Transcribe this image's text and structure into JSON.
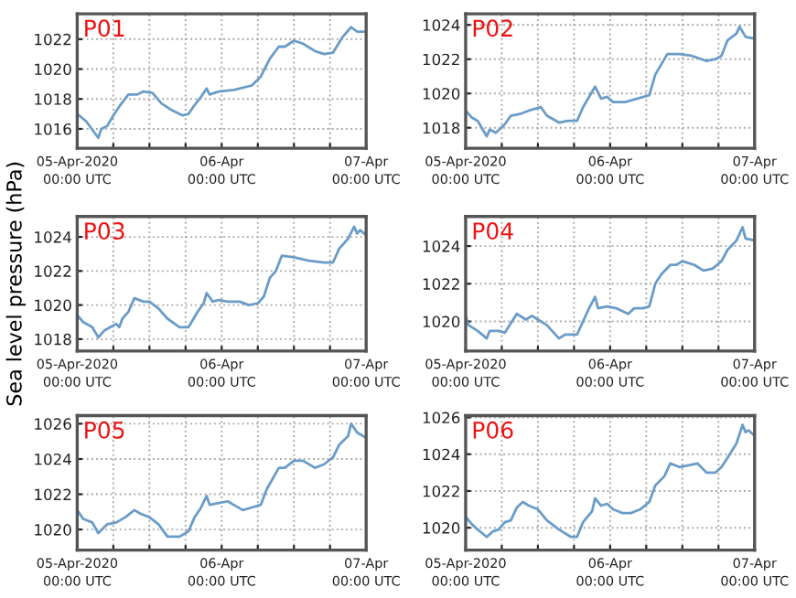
{
  "chart_data": [
    {
      "type": "line",
      "title": "P01",
      "xlim": [
        "2020-04-05T00:00",
        "2020-04-07T00:00"
      ],
      "ylim": [
        1014.7,
        1023.7
      ],
      "yticks": [
        1016,
        1018,
        1020,
        1022
      ],
      "xticks": [
        {
          "value": "2020-04-05T00:00",
          "label": "05-Apr-2020\n00:00 UTC"
        },
        {
          "value": "2020-04-05T06:00",
          "label": null
        },
        {
          "value": "2020-04-05T12:00",
          "label": null
        },
        {
          "value": "2020-04-05T18:00",
          "label": null
        },
        {
          "value": "2020-04-06T00:00",
          "label": "06-Apr\n00:00 UTC"
        },
        {
          "value": "2020-04-06T06:00",
          "label": null
        },
        {
          "value": "2020-04-06T12:00",
          "label": null
        },
        {
          "value": "2020-04-06T18:00",
          "label": null
        },
        {
          "value": "2020-04-07T00:00",
          "label": "07-Apr\n00:00 UTC"
        }
      ],
      "grid": true,
      "series": [
        {
          "color": "#6a9cc8",
          "x": [
            "2020-04-05T00:00",
            "2020-04-05T01:30",
            "2020-04-05T03:30",
            "2020-04-05T04:00",
            "2020-04-05T05:00",
            "2020-04-05T06:00",
            "2020-04-05T07:00",
            "2020-04-05T08:30",
            "2020-04-05T10:00",
            "2020-04-05T11:00",
            "2020-04-05T12:30",
            "2020-04-05T14:00",
            "2020-04-05T15:30",
            "2020-04-05T17:30",
            "2020-04-05T18:30",
            "2020-04-05T19:30",
            "2020-04-05T20:30",
            "2020-04-05T21:30",
            "2020-04-05T22:00",
            "2020-04-05T23:30",
            "2020-04-06T02:00",
            "2020-04-06T05:00",
            "2020-04-06T06:30",
            "2020-04-06T08:00",
            "2020-04-06T09:30",
            "2020-04-06T10:30",
            "2020-04-06T12:00",
            "2020-04-06T13:30",
            "2020-04-06T15:30",
            "2020-04-06T17:00",
            "2020-04-06T18:30",
            "2020-04-06T20:00",
            "2020-04-06T21:30",
            "2020-04-06T22:30",
            "2020-04-07T00:00"
          ],
          "values": [
            1017.0,
            1016.5,
            1015.4,
            1016.0,
            1016.2,
            1016.9,
            1017.5,
            1018.3,
            1018.3,
            1018.5,
            1018.4,
            1017.7,
            1017.3,
            1016.9,
            1017.0,
            1017.6,
            1018.1,
            1018.7,
            1018.3,
            1018.5,
            1018.6,
            1018.9,
            1019.5,
            1020.7,
            1021.5,
            1021.5,
            1021.9,
            1021.7,
            1021.2,
            1021.0,
            1021.1,
            1022.1,
            1022.8,
            1022.5,
            1022.5
          ]
        }
      ]
    },
    {
      "type": "line",
      "title": "P02",
      "xlim": [
        "2020-04-05T00:00",
        "2020-04-07T00:00"
      ],
      "ylim": [
        1016.8,
        1024.65
      ],
      "yticks": [
        1018,
        1020,
        1022,
        1024
      ],
      "xticks": [
        {
          "value": "2020-04-05T00:00",
          "label": "05-Apr-2020\n00:00 UTC"
        },
        {
          "value": "2020-04-05T06:00",
          "label": null
        },
        {
          "value": "2020-04-05T12:00",
          "label": null
        },
        {
          "value": "2020-04-05T18:00",
          "label": null
        },
        {
          "value": "2020-04-06T00:00",
          "label": "06-Apr\n00:00 UTC"
        },
        {
          "value": "2020-04-06T06:00",
          "label": null
        },
        {
          "value": "2020-04-06T12:00",
          "label": null
        },
        {
          "value": "2020-04-06T18:00",
          "label": null
        },
        {
          "value": "2020-04-07T00:00",
          "label": "07-Apr\n00:00 UTC"
        }
      ],
      "grid": true,
      "series": [
        {
          "color": "#6a9cc8",
          "x": [
            "2020-04-05T00:00",
            "2020-04-05T01:00",
            "2020-04-05T02:00",
            "2020-04-05T03:30",
            "2020-04-05T04:00",
            "2020-04-05T05:00",
            "2020-04-05T06:30",
            "2020-04-05T07:30",
            "2020-04-05T09:00",
            "2020-04-05T10:30",
            "2020-04-05T12:30",
            "2020-04-05T13:30",
            "2020-04-05T15:30",
            "2020-04-05T17:00",
            "2020-04-05T18:30",
            "2020-04-05T19:30",
            "2020-04-05T20:30",
            "2020-04-05T21:30",
            "2020-04-05T22:30",
            "2020-04-05T23:30",
            "2020-04-06T00:30",
            "2020-04-06T02:30",
            "2020-04-06T04:30",
            "2020-04-06T06:30",
            "2020-04-06T07:30",
            "2020-04-06T09:30",
            "2020-04-06T11:30",
            "2020-04-06T13:30",
            "2020-04-06T16:00",
            "2020-04-06T17:30",
            "2020-04-06T18:30",
            "2020-04-06T19:30",
            "2020-04-06T21:00",
            "2020-04-06T21:30",
            "2020-04-06T22:30",
            "2020-04-07T00:00"
          ],
          "values": [
            1019.0,
            1018.6,
            1018.4,
            1017.5,
            1017.9,
            1017.7,
            1018.2,
            1018.7,
            1018.8,
            1019.0,
            1019.2,
            1018.7,
            1018.3,
            1018.4,
            1018.4,
            1019.2,
            1019.8,
            1020.4,
            1019.7,
            1019.8,
            1019.5,
            1019.5,
            1019.7,
            1019.9,
            1021.1,
            1022.3,
            1022.3,
            1022.2,
            1021.9,
            1022.0,
            1022.2,
            1023.1,
            1023.5,
            1023.9,
            1023.3,
            1023.2
          ]
        }
      ]
    },
    {
      "type": "line",
      "title": "P03",
      "ylabel": "Sea level pressure (hPa)",
      "xlim": [
        "2020-04-05T00:00",
        "2020-04-07T00:00"
      ],
      "ylim": [
        1017.3,
        1025.2
      ],
      "yticks": [
        1018,
        1020,
        1022,
        1024
      ],
      "xticks": [
        {
          "value": "2020-04-05T00:00",
          "label": "05-Apr-2020\n00:00 UTC"
        },
        {
          "value": "2020-04-05T06:00",
          "label": null
        },
        {
          "value": "2020-04-05T12:00",
          "label": null
        },
        {
          "value": "2020-04-05T18:00",
          "label": null
        },
        {
          "value": "2020-04-06T00:00",
          "label": "06-Apr\n00:00 UTC"
        },
        {
          "value": "2020-04-06T06:00",
          "label": null
        },
        {
          "value": "2020-04-06T12:00",
          "label": null
        },
        {
          "value": "2020-04-06T18:00",
          "label": null
        },
        {
          "value": "2020-04-07T00:00",
          "label": "07-Apr\n00:00 UTC"
        }
      ],
      "grid": true,
      "series": [
        {
          "color": "#6a9cc8",
          "x": [
            "2020-04-05T00:00",
            "2020-04-05T01:00",
            "2020-04-05T02:30",
            "2020-04-05T03:30",
            "2020-04-05T04:30",
            "2020-04-05T05:30",
            "2020-04-05T06:30",
            "2020-04-05T07:00",
            "2020-04-05T07:30",
            "2020-04-05T08:30",
            "2020-04-05T09:30",
            "2020-04-05T11:00",
            "2020-04-05T12:00",
            "2020-04-05T13:30",
            "2020-04-05T15:00",
            "2020-04-05T17:00",
            "2020-04-05T18:30",
            "2020-04-05T20:00",
            "2020-04-05T21:00",
            "2020-04-05T21:30",
            "2020-04-05T22:30",
            "2020-04-05T23:30",
            "2020-04-06T01:00",
            "2020-04-06T03:00",
            "2020-04-06T04:30",
            "2020-04-06T06:00",
            "2020-04-06T07:00",
            "2020-04-06T08:00",
            "2020-04-06T09:00",
            "2020-04-06T10:00",
            "2020-04-06T12:00",
            "2020-04-06T14:30",
            "2020-04-06T17:00",
            "2020-04-06T18:30",
            "2020-04-06T19:30",
            "2020-04-06T21:00",
            "2020-04-06T22:00",
            "2020-04-06T22:30",
            "2020-04-06T23:00",
            "2020-04-07T00:00"
          ],
          "values": [
            1019.4,
            1019.0,
            1018.7,
            1018.1,
            1018.5,
            1018.7,
            1018.9,
            1018.7,
            1019.2,
            1019.6,
            1020.4,
            1020.2,
            1020.2,
            1019.8,
            1019.2,
            1018.7,
            1018.7,
            1019.6,
            1020.1,
            1020.7,
            1020.2,
            1020.3,
            1020.2,
            1020.2,
            1020.0,
            1020.1,
            1020.5,
            1021.6,
            1022.0,
            1022.9,
            1022.8,
            1022.6,
            1022.5,
            1022.5,
            1023.3,
            1023.9,
            1024.6,
            1024.2,
            1024.4,
            1024.1
          ]
        }
      ]
    },
    {
      "type": "line",
      "title": "P04",
      "xlim": [
        "2020-04-05T00:00",
        "2020-04-07T00:00"
      ],
      "ylim": [
        1018.43,
        1025.57
      ],
      "yticks": [
        1020,
        1022,
        1024
      ],
      "xticks": [
        {
          "value": "2020-04-05T00:00",
          "label": "05-Apr-2020\n00:00 UTC"
        },
        {
          "value": "2020-04-05T06:00",
          "label": null
        },
        {
          "value": "2020-04-05T12:00",
          "label": null
        },
        {
          "value": "2020-04-05T18:00",
          "label": null
        },
        {
          "value": "2020-04-06T00:00",
          "label": "06-Apr\n00:00 UTC"
        },
        {
          "value": "2020-04-06T06:00",
          "label": null
        },
        {
          "value": "2020-04-06T12:00",
          "label": null
        },
        {
          "value": "2020-04-06T18:00",
          "label": null
        },
        {
          "value": "2020-04-07T00:00",
          "label": "07-Apr\n00:00 UTC"
        }
      ],
      "grid": true,
      "series": [
        {
          "color": "#6a9cc8",
          "x": [
            "2020-04-05T00:00",
            "2020-04-05T00:30",
            "2020-04-05T02:00",
            "2020-04-05T03:30",
            "2020-04-05T04:00",
            "2020-04-05T05:30",
            "2020-04-05T06:30",
            "2020-04-05T07:30",
            "2020-04-05T08:30",
            "2020-04-05T10:00",
            "2020-04-05T11:00",
            "2020-04-05T12:00",
            "2020-04-05T13:30",
            "2020-04-05T15:30",
            "2020-04-05T16:30",
            "2020-04-05T18:30",
            "2020-04-05T19:30",
            "2020-04-05T20:30",
            "2020-04-05T21:30",
            "2020-04-05T22:00",
            "2020-04-05T23:30",
            "2020-04-06T01:00",
            "2020-04-06T03:00",
            "2020-04-06T04:00",
            "2020-04-06T05:30",
            "2020-04-06T06:30",
            "2020-04-06T07:30",
            "2020-04-06T08:30",
            "2020-04-06T10:00",
            "2020-04-06T11:00",
            "2020-04-06T12:00",
            "2020-04-06T14:00",
            "2020-04-06T15:30",
            "2020-04-06T17:00",
            "2020-04-06T18:30",
            "2020-04-06T19:30",
            "2020-04-06T21:00",
            "2020-04-06T22:00",
            "2020-04-06T22:30",
            "2020-04-07T00:00"
          ],
          "values": [
            1020.3,
            1019.8,
            1019.5,
            1019.1,
            1019.5,
            1019.5,
            1019.4,
            1019.9,
            1020.4,
            1020.1,
            1020.3,
            1020.1,
            1019.8,
            1019.1,
            1019.3,
            1019.3,
            1020.0,
            1020.7,
            1021.3,
            1020.7,
            1020.8,
            1020.7,
            1020.4,
            1020.7,
            1020.7,
            1020.8,
            1022.0,
            1022.5,
            1023.0,
            1023.0,
            1023.2,
            1023.0,
            1022.7,
            1022.8,
            1023.2,
            1023.8,
            1024.3,
            1025.0,
            1024.4,
            1024.3
          ]
        }
      ]
    },
    {
      "type": "line",
      "title": "P05",
      "xlim": [
        "2020-04-05T00:00",
        "2020-04-07T00:00"
      ],
      "ylim": [
        1018.83,
        1026.46
      ],
      "yticks": [
        1020,
        1022,
        1024,
        1026
      ],
      "xticks": [
        {
          "value": "2020-04-05T00:00",
          "label": "05-Apr-2020\n00:00 UTC"
        },
        {
          "value": "2020-04-05T06:00",
          "label": null
        },
        {
          "value": "2020-04-05T12:00",
          "label": null
        },
        {
          "value": "2020-04-05T18:00",
          "label": null
        },
        {
          "value": "2020-04-06T00:00",
          "label": "06-Apr\n00:00 UTC"
        },
        {
          "value": "2020-04-06T06:00",
          "label": null
        },
        {
          "value": "2020-04-06T12:00",
          "label": null
        },
        {
          "value": "2020-04-06T18:00",
          "label": null
        },
        {
          "value": "2020-04-07T00:00",
          "label": "07-Apr\n00:00 UTC"
        }
      ],
      "grid": true,
      "series": [
        {
          "color": "#6a9cc8",
          "x": [
            "2020-04-05T00:00",
            "2020-04-05T01:00",
            "2020-04-05T02:30",
            "2020-04-05T03:30",
            "2020-04-05T05:00",
            "2020-04-05T06:30",
            "2020-04-05T08:00",
            "2020-04-05T09:30",
            "2020-04-05T10:30",
            "2020-04-05T12:00",
            "2020-04-05T13:30",
            "2020-04-05T15:00",
            "2020-04-05T17:00",
            "2020-04-05T18:30",
            "2020-04-05T19:30",
            "2020-04-05T20:30",
            "2020-04-05T21:30",
            "2020-04-05T22:00",
            "2020-04-05T23:30",
            "2020-04-06T01:00",
            "2020-04-06T03:30",
            "2020-04-06T04:30",
            "2020-04-06T06:30",
            "2020-04-06T07:30",
            "2020-04-06T09:30",
            "2020-04-06T10:30",
            "2020-04-06T12:00",
            "2020-04-06T13:30",
            "2020-04-06T15:30",
            "2020-04-06T17:00",
            "2020-04-06T18:30",
            "2020-04-06T19:30",
            "2020-04-06T21:00",
            "2020-04-06T21:30",
            "2020-04-06T22:30",
            "2020-04-07T00:00"
          ],
          "values": [
            1021.1,
            1020.6,
            1020.4,
            1019.8,
            1020.3,
            1020.4,
            1020.7,
            1021.1,
            1020.9,
            1020.7,
            1020.3,
            1019.6,
            1019.6,
            1019.9,
            1020.7,
            1021.2,
            1021.9,
            1021.4,
            1021.5,
            1021.6,
            1021.1,
            1021.2,
            1021.4,
            1022.3,
            1023.5,
            1023.5,
            1023.9,
            1023.9,
            1023.5,
            1023.7,
            1024.1,
            1024.8,
            1025.3,
            1026.0,
            1025.5,
            1025.2
          ]
        }
      ]
    },
    {
      "type": "line",
      "title": "P06",
      "xlim": [
        "2020-04-05T00:00",
        "2020-04-07T00:00"
      ],
      "ylim": [
        1018.78,
        1026.1
      ],
      "yticks": [
        1020,
        1022,
        1024,
        1026
      ],
      "xticks": [
        {
          "value": "2020-04-05T00:00",
          "label": "05-Apr-2020\n00:00 UTC"
        },
        {
          "value": "2020-04-05T06:00",
          "label": null
        },
        {
          "value": "2020-04-05T12:00",
          "label": null
        },
        {
          "value": "2020-04-05T18:00",
          "label": null
        },
        {
          "value": "2020-04-06T00:00",
          "label": "06-Apr\n00:00 UTC"
        },
        {
          "value": "2020-04-06T06:00",
          "label": null
        },
        {
          "value": "2020-04-06T12:00",
          "label": null
        },
        {
          "value": "2020-04-06T18:00",
          "label": null
        },
        {
          "value": "2020-04-07T00:00",
          "label": "07-Apr\n00:00 UTC"
        }
      ],
      "grid": true,
      "series": [
        {
          "color": "#6a9cc8",
          "x": [
            "2020-04-05T00:00",
            "2020-04-05T01:00",
            "2020-04-05T02:00",
            "2020-04-05T03:30",
            "2020-04-05T04:30",
            "2020-04-05T05:30",
            "2020-04-05T06:30",
            "2020-04-05T07:30",
            "2020-04-05T08:30",
            "2020-04-05T09:30",
            "2020-04-05T10:30",
            "2020-04-05T12:00",
            "2020-04-05T13:30",
            "2020-04-05T15:30",
            "2020-04-05T17:30",
            "2020-04-05T18:30",
            "2020-04-05T19:30",
            "2020-04-05T21:00",
            "2020-04-05T21:30",
            "2020-04-05T22:30",
            "2020-04-05T23:30",
            "2020-04-06T00:30",
            "2020-04-06T02:00",
            "2020-04-06T03:30",
            "2020-04-06T05:00",
            "2020-04-06T06:30",
            "2020-04-06T07:30",
            "2020-04-06T09:00",
            "2020-04-06T10:00",
            "2020-04-06T11:30",
            "2020-04-06T13:00",
            "2020-04-06T14:30",
            "2020-04-06T16:00",
            "2020-04-06T17:30",
            "2020-04-06T18:30",
            "2020-04-06T19:30",
            "2020-04-06T21:00",
            "2020-04-06T22:00",
            "2020-04-06T22:30",
            "2020-04-06T23:00",
            "2020-04-07T00:00"
          ],
          "values": [
            1020.6,
            1020.2,
            1019.9,
            1019.5,
            1019.8,
            1019.9,
            1020.3,
            1020.4,
            1021.1,
            1021.4,
            1021.2,
            1021.0,
            1020.4,
            1019.9,
            1019.5,
            1019.5,
            1020.3,
            1020.9,
            1021.6,
            1021.2,
            1021.3,
            1021.0,
            1020.8,
            1020.8,
            1021.0,
            1021.4,
            1022.3,
            1022.8,
            1023.5,
            1023.3,
            1023.4,
            1023.5,
            1023.0,
            1023.0,
            1023.3,
            1023.8,
            1024.6,
            1025.6,
            1025.2,
            1025.3,
            1025.0
          ]
        }
      ]
    }
  ]
}
